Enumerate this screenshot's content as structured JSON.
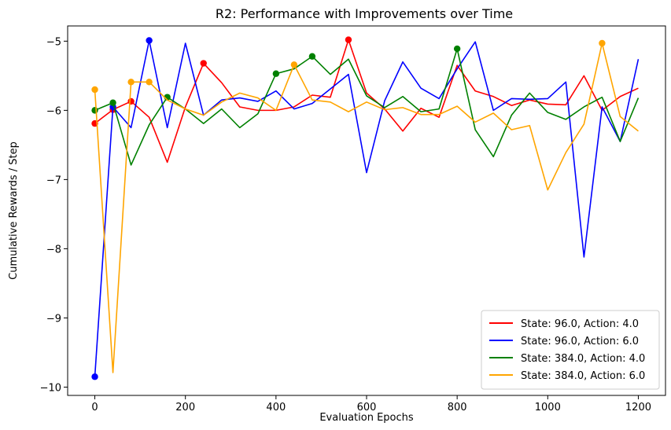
{
  "chart_data": {
    "type": "line",
    "title": "R2: Performance with Improvements over Time",
    "xlabel": "Evaluation Epochs",
    "ylabel": "Cumulative Rewards / Step",
    "xlim": [
      -60,
      1260
    ],
    "ylim": [
      -10.12,
      -4.78
    ],
    "xticks": [
      0,
      200,
      400,
      600,
      800,
      1000,
      1200
    ],
    "xtick_labels": [
      "0",
      "200",
      "400",
      "600",
      "800",
      "1000",
      "1200"
    ],
    "yticks": [
      -10,
      -9,
      -8,
      -7,
      -6,
      -5
    ],
    "ytick_labels": [
      "−10",
      "−9",
      "−8",
      "−7",
      "−6",
      "−5"
    ],
    "grid": false,
    "legend_position": "lower-right",
    "x": [
      0,
      40,
      80,
      120,
      160,
      200,
      240,
      280,
      320,
      360,
      400,
      440,
      480,
      520,
      560,
      600,
      640,
      680,
      720,
      760,
      800,
      840,
      880,
      920,
      960,
      1000,
      1040,
      1080,
      1120,
      1160,
      1200
    ],
    "series": [
      {
        "name": "State: 96.0, Action: 4.0",
        "color": "#ff0000",
        "values": [
          -6.19,
          -5.99,
          -5.87,
          -6.1,
          -6.75,
          -5.95,
          -5.32,
          -5.6,
          -5.95,
          -6.0,
          -6.0,
          -5.95,
          -5.78,
          -5.81,
          -4.98,
          -5.75,
          -5.98,
          -6.3,
          -5.97,
          -6.1,
          -5.35,
          -5.72,
          -5.8,
          -5.93,
          -5.85,
          -5.91,
          -5.92,
          -5.5,
          -6.0,
          -5.8,
          -5.68
        ],
        "marker_x": [
          0,
          40,
          80,
          240,
          560
        ]
      },
      {
        "name": "State: 96.0, Action: 6.0",
        "color": "#0000ff",
        "values": [
          -9.85,
          -5.95,
          -6.25,
          -4.99,
          -6.25,
          -5.03,
          -6.07,
          -5.85,
          -5.82,
          -5.87,
          -5.72,
          -5.98,
          -5.9,
          -5.69,
          -5.48,
          -6.9,
          -5.86,
          -5.3,
          -5.68,
          -5.83,
          -5.4,
          -5.01,
          -6.0,
          -5.83,
          -5.84,
          -5.83,
          -5.59,
          -8.12,
          -5.95,
          -6.45,
          -5.26
        ],
        "marker_x": [
          0,
          40,
          120
        ]
      },
      {
        "name": "State: 384.0, Action: 4.0",
        "color": "#008000",
        "values": [
          -6.0,
          -5.89,
          -6.79,
          -6.21,
          -5.81,
          -5.98,
          -6.19,
          -5.98,
          -6.25,
          -6.05,
          -5.47,
          -5.4,
          -5.22,
          -5.48,
          -5.26,
          -5.79,
          -5.96,
          -5.8,
          -6.02,
          -5.98,
          -5.11,
          -6.28,
          -6.67,
          -6.07,
          -5.75,
          -6.03,
          -6.13,
          -5.95,
          -5.81,
          -6.45,
          -5.82
        ],
        "marker_x": [
          0,
          40,
          160,
          400,
          480,
          800
        ]
      },
      {
        "name": "State: 384.0, Action: 6.0",
        "color": "#ffa500",
        "values": [
          -5.7,
          -9.79,
          -5.59,
          -5.59,
          -5.85,
          -5.98,
          -6.07,
          -5.88,
          -5.75,
          -5.82,
          -6.0,
          -5.34,
          -5.85,
          -5.88,
          -6.02,
          -5.88,
          -5.99,
          -5.96,
          -6.06,
          -6.06,
          -5.94,
          -6.17,
          -6.04,
          -6.28,
          -6.22,
          -7.15,
          -6.61,
          -6.2,
          -5.03,
          -6.09,
          -6.3
        ],
        "marker_x": [
          0,
          80,
          120,
          440,
          1120
        ]
      }
    ]
  }
}
